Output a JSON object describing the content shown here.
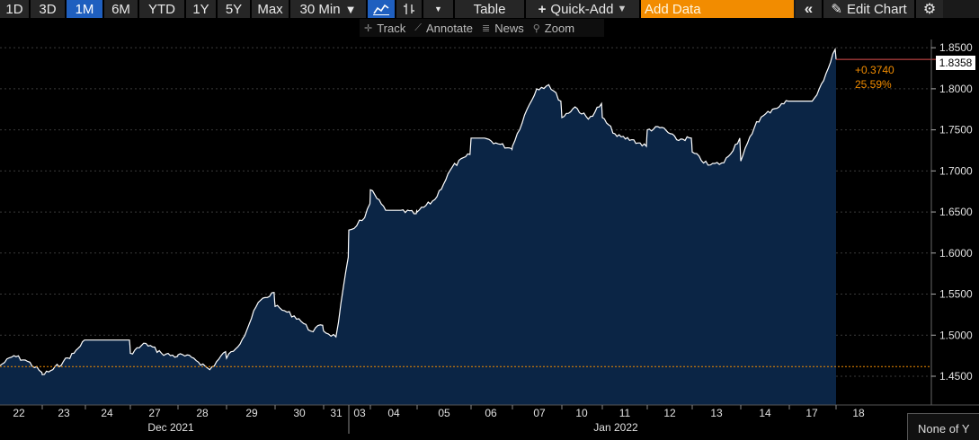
{
  "toolbar": {
    "ranges": [
      "1D",
      "3D",
      "1M",
      "6M",
      "YTD",
      "1Y",
      "5Y",
      "Max"
    ],
    "active_range": "1M",
    "interval": "30 Min",
    "table_label": "Table",
    "quick_add_label": "Quick-Add",
    "add_data_placeholder": "Add Data",
    "edit_chart_label": "Edit Chart"
  },
  "subbar": {
    "track": "Track",
    "annotate": "Annotate",
    "news": "News",
    "zoom": "Zoom"
  },
  "colors": {
    "accent_orange": "#f28c00",
    "active_blue": "#1f5fbf",
    "area_fill": "#0b2545",
    "line": "#ffffff"
  },
  "chart_data": {
    "type": "area",
    "ylim": [
      1.415,
      1.86
    ],
    "y_ticks": [
      "1.4500",
      "1.5000",
      "1.5500",
      "1.6000",
      "1.6500",
      "1.7000",
      "1.7500",
      "1.8000",
      "1.8500"
    ],
    "y_tick_values": [
      1.45,
      1.5,
      1.55,
      1.6,
      1.65,
      1.7,
      1.75,
      1.8,
      1.85
    ],
    "x_tick_labels": [
      "22",
      "23",
      "24",
      "27",
      "28",
      "29",
      "30",
      "31",
      "03",
      "04",
      "05",
      "06",
      "07",
      "10",
      "11",
      "12",
      "13",
      "14",
      "17",
      "18"
    ],
    "x_groups": [
      "Dec 2021",
      "Jan 2022"
    ],
    "x": [
      "22",
      "22",
      "22",
      "22",
      "23",
      "23",
      "23",
      "23",
      "23",
      "24",
      "24",
      "24",
      "27",
      "27",
      "27",
      "27",
      "28",
      "28",
      "28",
      "28",
      "29",
      "29",
      "29",
      "29",
      "30",
      "30",
      "30",
      "30",
      "30",
      "31",
      "31",
      "31",
      "03",
      "03",
      "03",
      "03",
      "03",
      "04",
      "04",
      "04",
      "04",
      "05",
      "05",
      "05",
      "05",
      "06",
      "06",
      "06",
      "06",
      "07",
      "07",
      "07",
      "07",
      "07",
      "10",
      "10",
      "10",
      "10",
      "11",
      "11",
      "11",
      "11",
      "12",
      "12",
      "12",
      "12",
      "13",
      "13",
      "13",
      "13",
      "14",
      "14",
      "14",
      "14",
      "17",
      "17",
      "17",
      "17",
      "17",
      "18"
    ],
    "values": [
      1.463,
      1.475,
      1.468,
      1.455,
      1.452,
      1.458,
      1.468,
      1.478,
      1.494,
      1.494,
      1.494,
      1.494,
      1.478,
      1.49,
      1.478,
      1.474,
      1.476,
      1.472,
      1.458,
      1.48,
      1.472,
      1.495,
      1.54,
      1.552,
      1.535,
      1.528,
      1.52,
      1.505,
      1.512,
      1.505,
      1.498,
      1.595,
      1.628,
      1.63,
      1.64,
      1.643,
      1.66,
      1.677,
      1.652,
      1.652,
      1.648,
      1.65,
      1.665,
      1.705,
      1.72,
      1.74,
      1.74,
      1.733,
      1.727,
      1.73,
      1.768,
      1.8,
      1.805,
      1.785,
      1.765,
      1.778,
      1.763,
      1.782,
      1.765,
      1.742,
      1.738,
      1.73,
      1.75,
      1.753,
      1.738,
      1.74,
      1.723,
      1.707,
      1.71,
      1.74,
      1.712,
      1.76,
      1.775,
      1.785,
      1.785,
      1.785,
      1.785,
      1.81,
      1.848,
      1.8358
    ],
    "reference_level": 1.4618,
    "last_value": "1.8358",
    "change_value": "+0.3740",
    "change_percent": "25.59%"
  },
  "legend_text": "None of Y"
}
